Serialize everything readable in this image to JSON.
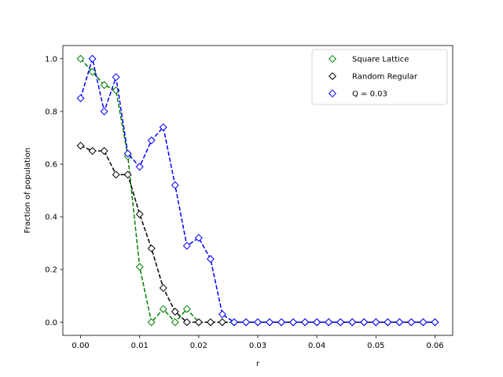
{
  "chart_data": {
    "type": "line",
    "title": "",
    "xlabel": "r",
    "ylabel": "Fraction of population",
    "xlim": [
      -0.003,
      0.063
    ],
    "ylim": [
      -0.05,
      1.05
    ],
    "xticks": [
      0.0,
      0.01,
      0.02,
      0.03,
      0.04,
      0.05,
      0.06
    ],
    "xtick_labels": [
      "0.00",
      "0.01",
      "0.02",
      "0.03",
      "0.04",
      "0.05",
      "0.06"
    ],
    "yticks": [
      0.0,
      0.2,
      0.4,
      0.6,
      0.8,
      1.0
    ],
    "ytick_labels": [
      "0.0",
      "0.2",
      "0.4",
      "0.6",
      "0.8",
      "1.0"
    ],
    "grid": false,
    "legend_position": "top-right",
    "line_style": "dashed",
    "marker": "diamond-open",
    "x": [
      0.0,
      0.002,
      0.004,
      0.006,
      0.008,
      0.01,
      0.012,
      0.014,
      0.016,
      0.018,
      0.02,
      0.022,
      0.024,
      0.026,
      0.028,
      0.03,
      0.032,
      0.034,
      0.036,
      0.038,
      0.04,
      0.042,
      0.044,
      0.046,
      0.048,
      0.05,
      0.052,
      0.054,
      0.056,
      0.058,
      0.06
    ],
    "series": [
      {
        "name": "Square Lattice",
        "color": "#008000",
        "values": [
          1.0,
          0.95,
          0.9,
          0.88,
          0.63,
          0.21,
          0.0,
          0.05,
          0.0,
          0.05,
          0.0,
          0.0,
          0.0,
          0.0,
          0.0,
          0.0,
          0.0,
          0.0,
          0.0,
          0.0,
          0.0,
          0.0,
          0.0,
          0.0,
          0.0,
          0.0,
          0.0,
          0.0,
          0.0,
          0.0,
          0.0
        ]
      },
      {
        "name": "Random Regular",
        "color": "#000000",
        "values": [
          0.67,
          0.65,
          0.65,
          0.56,
          0.56,
          0.41,
          0.28,
          0.13,
          0.04,
          0.0,
          0.0,
          0.0,
          0.0,
          0.0,
          0.0,
          0.0,
          0.0,
          0.0,
          0.0,
          0.0,
          0.0,
          0.0,
          0.0,
          0.0,
          0.0,
          0.0,
          0.0,
          0.0,
          0.0,
          0.0,
          0.0
        ]
      },
      {
        "name": "Q = 0.03",
        "color": "#0000ff",
        "values": [
          0.85,
          1.0,
          0.8,
          0.93,
          0.64,
          0.59,
          0.69,
          0.74,
          0.52,
          0.29,
          0.32,
          0.24,
          0.03,
          0.0,
          0.0,
          0.0,
          0.0,
          0.0,
          0.0,
          0.0,
          0.0,
          0.0,
          0.0,
          0.0,
          0.0,
          0.0,
          0.0,
          0.0,
          0.0,
          0.0,
          0.0
        ]
      }
    ]
  }
}
